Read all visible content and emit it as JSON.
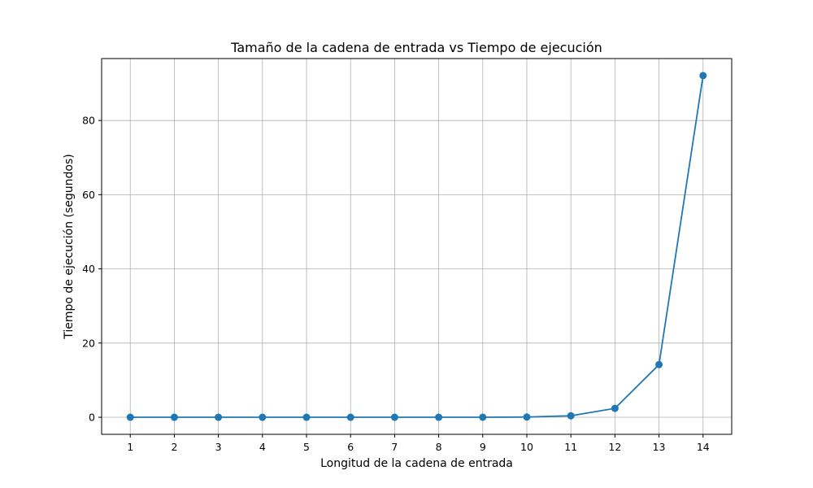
{
  "chart_data": {
    "type": "line",
    "title": "Tamaño de la cadena de entrada vs Tiempo de ejecución",
    "xlabel": "Longitud de la cadena de entrada",
    "ylabel": "Tiempo de ejecución (segundos)",
    "x": [
      1,
      2,
      3,
      4,
      5,
      6,
      7,
      8,
      9,
      10,
      11,
      12,
      13,
      14
    ],
    "x_ticks": [
      "1",
      "2",
      "3",
      "4",
      "5",
      "6",
      "7",
      "8",
      "9",
      "10",
      "11",
      "12",
      "13",
      "14"
    ],
    "y_ticks": [
      "0",
      "20",
      "40",
      "60",
      "80"
    ],
    "series": [
      {
        "name": "",
        "values": [
          0.0,
          0.0,
          0.0,
          0.0,
          0.0,
          0.0,
          0.0,
          0.0,
          0.01,
          0.06,
          0.4,
          2.4,
          14.2,
          92.1
        ],
        "color": "#1f77b4",
        "marker": "circle"
      }
    ],
    "xlim": [
      0.35,
      14.65
    ],
    "ylim": [
      -4.6,
      96.7
    ],
    "grid": true,
    "grid_color": "#b0b0b0"
  }
}
